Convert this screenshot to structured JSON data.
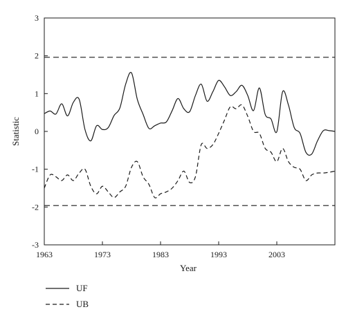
{
  "chart_data": {
    "type": "line",
    "xlabel": "Year",
    "ylabel": "Statistic",
    "xlim": [
      1963,
      2013
    ],
    "ylim": [
      -3,
      3
    ],
    "xticks": [
      1963,
      1973,
      1983,
      1993,
      2003
    ],
    "yticks": [
      -3,
      -2,
      -1,
      0,
      1,
      2,
      3
    ],
    "legend_position": "bottom-left",
    "grid": false,
    "reference_lines": [
      1.96,
      -1.96
    ],
    "series": [
      {
        "name": "UF",
        "style": "solid",
        "color": "#1a1a1a",
        "x": [
          1963,
          1964,
          1965,
          1966,
          1967,
          1968,
          1969,
          1970,
          1971,
          1972,
          1973,
          1974,
          1975,
          1976,
          1977,
          1978,
          1979,
          1980,
          1981,
          1982,
          1983,
          1984,
          1985,
          1986,
          1987,
          1988,
          1989,
          1990,
          1991,
          1992,
          1993,
          1994,
          1995,
          1996,
          1997,
          1998,
          1999,
          2000,
          2001,
          2002,
          2003,
          2004,
          2005,
          2006,
          2007,
          2008,
          2009,
          2010,
          2011,
          2012,
          2013
        ],
        "values": [
          0.47,
          0.54,
          0.46,
          0.73,
          0.41,
          0.77,
          0.85,
          0.05,
          -0.25,
          0.15,
          0.05,
          0.1,
          0.42,
          0.62,
          1.25,
          1.55,
          0.85,
          0.45,
          0.08,
          0.15,
          0.22,
          0.25,
          0.55,
          0.87,
          0.6,
          0.52,
          0.95,
          1.25,
          0.8,
          1.05,
          1.35,
          1.18,
          0.95,
          1.05,
          1.22,
          0.95,
          0.55,
          1.15,
          0.45,
          0.33,
          -0.01,
          1.05,
          0.7,
          0.1,
          -0.05,
          -0.55,
          -0.6,
          -0.25,
          0.02,
          0.02,
          0.0
        ]
      },
      {
        "name": "UB",
        "style": "dashed",
        "color": "#1a1a1a",
        "x": [
          1963,
          1964,
          1965,
          1966,
          1967,
          1968,
          1969,
          1970,
          1971,
          1972,
          1973,
          1974,
          1975,
          1976,
          1977,
          1978,
          1979,
          1980,
          1981,
          1982,
          1983,
          1984,
          1985,
          1986,
          1987,
          1988,
          1989,
          1990,
          1991,
          1992,
          1993,
          1994,
          1995,
          1996,
          1997,
          1998,
          1999,
          2000,
          2001,
          2002,
          2003,
          2004,
          2005,
          2006,
          2007,
          2008,
          2009,
          2010,
          2011,
          2012,
          2013
        ],
        "values": [
          -1.5,
          -1.15,
          -1.2,
          -1.3,
          -1.15,
          -1.3,
          -1.1,
          -1.0,
          -1.45,
          -1.65,
          -1.45,
          -1.6,
          -1.75,
          -1.6,
          -1.45,
          -0.95,
          -0.8,
          -1.2,
          -1.4,
          -1.75,
          -1.65,
          -1.6,
          -1.5,
          -1.3,
          -1.05,
          -1.35,
          -1.2,
          -0.35,
          -0.45,
          -0.35,
          -0.05,
          0.3,
          0.65,
          0.6,
          0.7,
          0.4,
          0.0,
          -0.05,
          -0.45,
          -0.55,
          -0.8,
          -0.45,
          -0.8,
          -0.95,
          -1.0,
          -1.3,
          -1.15,
          -1.1,
          -1.1,
          -1.08,
          -1.05
        ]
      }
    ]
  }
}
